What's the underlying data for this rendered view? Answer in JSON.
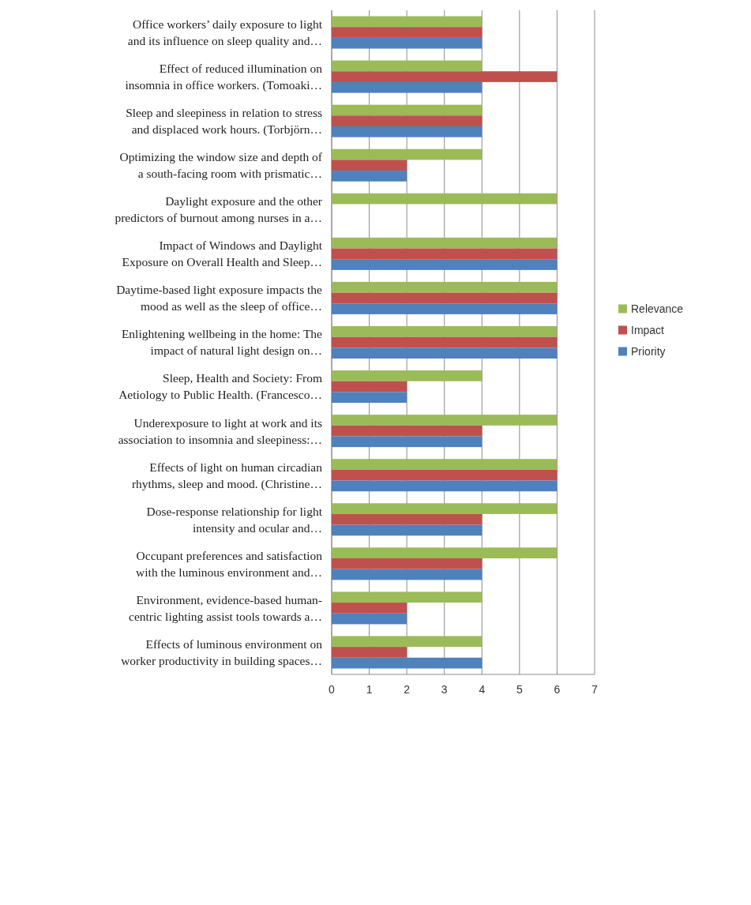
{
  "chart_data": {
    "type": "bar",
    "orientation": "horizontal",
    "categories": [
      "Office workers’ daily exposure to light\nand its influence on sleep quality and…",
      "Effect of reduced illumination on\ninsomnia in office workers. (Tomoaki…",
      "Sleep and sleepiness in relation to stress\nand displaced work hours. (Torbjörn…",
      "Optimizing the window size and depth of\na south-facing room with prismatic…",
      "Daylight exposure and the other\npredictors of burnout among nurses in a…",
      "Impact of Windows and Daylight\nExposure on Overall Health and Sleep…",
      "Daytime-based light exposure impacts the\nmood as well as the sleep of office…",
      "Enlightening wellbeing in the home: The\nimpact of natural light design on…",
      "Sleep, Health and Society: From\nAetiology to Public Health. (Francesco…",
      "Underexposure to light at work and its\nassociation to insomnia and sleepiness:…",
      "Effects of light on human circadian\nrhythms, sleep and mood. (Christine…",
      "Dose-response relationship for light\nintensity and ocular and…",
      "Occupant preferences and satisfaction\nwith the luminous environment and…",
      "Environment, evidence-based human-\ncentric lighting assist tools towards a…",
      "Effects of luminous environment on\nworker productivity in building spaces…"
    ],
    "series": [
      {
        "name": "Relevance",
        "color": "#9bbb59",
        "values": [
          4,
          4,
          4,
          4,
          6,
          6,
          6,
          6,
          4,
          6,
          6,
          6,
          6,
          4,
          4
        ]
      },
      {
        "name": "Impact",
        "color": "#c0504d",
        "values": [
          4,
          6,
          4,
          2,
          null,
          6,
          6,
          6,
          2,
          4,
          6,
          4,
          4,
          2,
          2
        ]
      },
      {
        "name": "Priority",
        "color": "#4f81bd",
        "values": [
          4,
          4,
          4,
          2,
          null,
          6,
          6,
          6,
          2,
          4,
          6,
          4,
          4,
          2,
          4
        ]
      }
    ],
    "xlim": [
      0,
      7
    ],
    "xticks": [
      0,
      1,
      2,
      3,
      4,
      5,
      6,
      7
    ],
    "grid": "x",
    "legend": "right"
  }
}
